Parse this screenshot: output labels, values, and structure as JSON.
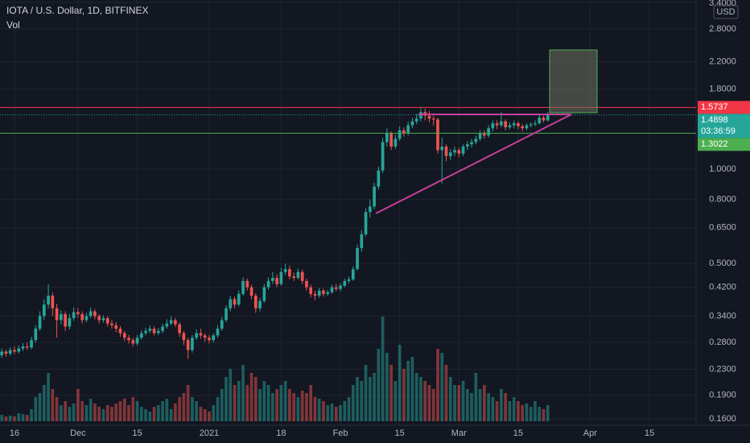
{
  "header": {
    "symbol": "IOTA / U.S. Dollar, 1D, BITFINEX",
    "indicator": "Vol"
  },
  "chart_data": {
    "type": "candlestick",
    "currency": "USD",
    "log_scale": true,
    "grid": true,
    "up_color": "#26a69a",
    "down_color": "#ef5350",
    "xlim": [
      -3.42,
      161.03
    ],
    "ylim": [
      0.1525,
      3.462
    ],
    "xticks": [
      {
        "value": 0,
        "label": "16"
      },
      {
        "value": 15,
        "label": "Dec"
      },
      {
        "value": 29,
        "label": "15"
      },
      {
        "value": 46,
        "label": "2021"
      },
      {
        "value": 63,
        "label": "18"
      },
      {
        "value": 77,
        "label": "Feb"
      },
      {
        "value": 91,
        "label": "15"
      },
      {
        "value": 105,
        "label": "Mar"
      },
      {
        "value": 119,
        "label": "15"
      },
      {
        "value": 136,
        "label": "Apr"
      },
      {
        "value": 150,
        "label": "15"
      }
    ],
    "yticks": [
      {
        "value": 3.4,
        "label": "3.4000"
      },
      {
        "value": 2.8,
        "label": "2.8000"
      },
      {
        "value": 2.2,
        "label": "2.2000"
      },
      {
        "value": 1.8,
        "label": "1.8000"
      },
      {
        "value": 1.0,
        "label": "1.0000"
      },
      {
        "value": 0.8,
        "label": "0.8000"
      },
      {
        "value": 0.65,
        "label": "0.6500"
      },
      {
        "value": 0.5,
        "label": "0.5000"
      },
      {
        "value": 0.42,
        "label": "0.4200"
      },
      {
        "value": 0.34,
        "label": "0.3400"
      },
      {
        "value": 0.28,
        "label": "0.2800"
      },
      {
        "value": 0.23,
        "label": "0.2300"
      },
      {
        "value": 0.19,
        "label": "0.1900"
      },
      {
        "value": 0.16,
        "label": "0.1600"
      }
    ],
    "price_lines": [
      {
        "value": 1.5737,
        "color": "#f23645"
      },
      {
        "value": 1.3022,
        "color": "#4caf50"
      }
    ],
    "last_price": 1.4898,
    "countdown": "03:36:59",
    "x": [
      -3,
      -2,
      -1,
      0,
      1,
      2,
      3,
      4,
      5,
      6,
      7,
      8,
      9,
      10,
      11,
      12,
      13,
      14,
      15,
      16,
      17,
      18,
      19,
      20,
      21,
      22,
      23,
      24,
      25,
      26,
      27,
      28,
      29,
      30,
      31,
      32,
      33,
      34,
      35,
      36,
      37,
      38,
      39,
      40,
      41,
      42,
      43,
      44,
      45,
      46,
      47,
      48,
      49,
      50,
      51,
      52,
      53,
      54,
      55,
      56,
      57,
      58,
      59,
      60,
      61,
      62,
      63,
      64,
      65,
      66,
      67,
      68,
      69,
      70,
      71,
      72,
      73,
      74,
      75,
      76,
      77,
      78,
      79,
      80,
      81,
      82,
      83,
      84,
      85,
      86,
      87,
      88,
      89,
      90,
      91,
      92,
      93,
      94,
      95,
      96,
      97,
      98,
      99,
      100,
      101,
      102,
      103,
      104,
      105,
      106,
      107,
      108,
      109,
      110,
      111,
      112,
      113,
      114,
      115,
      116,
      117,
      118,
      119,
      120,
      121,
      122,
      123,
      124,
      125,
      126
    ],
    "open": [
      0.255,
      0.262,
      0.258,
      0.265,
      0.262,
      0.268,
      0.272,
      0.27,
      0.285,
      0.31,
      0.34,
      0.37,
      0.395,
      0.36,
      0.33,
      0.345,
      0.315,
      0.335,
      0.35,
      0.345,
      0.33,
      0.34,
      0.352,
      0.34,
      0.33,
      0.335,
      0.322,
      0.318,
      0.31,
      0.3,
      0.29,
      0.285,
      0.278,
      0.29,
      0.3,
      0.305,
      0.31,
      0.3,
      0.305,
      0.315,
      0.322,
      0.33,
      0.32,
      0.3,
      0.285,
      0.265,
      0.29,
      0.3,
      0.295,
      0.29,
      0.285,
      0.295,
      0.31,
      0.33,
      0.36,
      0.385,
      0.37,
      0.4,
      0.44,
      0.42,
      0.395,
      0.36,
      0.38,
      0.42,
      0.44,
      0.45,
      0.43,
      0.47,
      0.48,
      0.455,
      0.45,
      0.47,
      0.44,
      0.42,
      0.4,
      0.395,
      0.41,
      0.4,
      0.405,
      0.42,
      0.415,
      0.425,
      0.44,
      0.445,
      0.48,
      0.56,
      0.62,
      0.73,
      0.76,
      0.88,
      0.99,
      1.22,
      1.3,
      1.18,
      1.25,
      1.33,
      1.3,
      1.38,
      1.42,
      1.45,
      1.52,
      1.48,
      1.45,
      1.44,
      1.15,
      1.18,
      1.1,
      1.13,
      1.15,
      1.12,
      1.18,
      1.2,
      1.22,
      1.25,
      1.3,
      1.28,
      1.35,
      1.4,
      1.38,
      1.42,
      1.36,
      1.38,
      1.4,
      1.37,
      1.35,
      1.38,
      1.39,
      1.4,
      1.46,
      1.43
    ],
    "high": [
      0.268,
      0.266,
      0.27,
      0.272,
      0.274,
      0.279,
      0.28,
      0.292,
      0.318,
      0.352,
      0.385,
      0.43,
      0.405,
      0.372,
      0.355,
      0.352,
      0.345,
      0.362,
      0.36,
      0.352,
      0.348,
      0.362,
      0.358,
      0.345,
      0.342,
      0.34,
      0.33,
      0.325,
      0.316,
      0.305,
      0.296,
      0.29,
      0.296,
      0.306,
      0.312,
      0.318,
      0.316,
      0.312,
      0.322,
      0.332,
      0.34,
      0.336,
      0.325,
      0.305,
      0.29,
      0.296,
      0.308,
      0.31,
      0.3,
      0.296,
      0.3,
      0.318,
      0.338,
      0.368,
      0.395,
      0.392,
      0.41,
      0.452,
      0.448,
      0.428,
      0.402,
      0.388,
      0.43,
      0.452,
      0.47,
      0.462,
      0.485,
      0.5,
      0.492,
      0.468,
      0.482,
      0.478,
      0.448,
      0.428,
      0.41,
      0.418,
      0.416,
      0.412,
      0.428,
      0.43,
      0.432,
      0.448,
      0.455,
      0.49,
      0.575,
      0.64,
      0.75,
      0.8,
      0.905,
      1.02,
      1.26,
      1.35,
      1.32,
      1.29,
      1.37,
      1.36,
      1.42,
      1.46,
      1.5,
      1.58,
      1.56,
      1.53,
      1.48,
      1.46,
      1.26,
      1.2,
      1.16,
      1.18,
      1.17,
      1.2,
      1.23,
      1.25,
      1.28,
      1.33,
      1.33,
      1.38,
      1.43,
      1.43,
      1.52,
      1.44,
      1.41,
      1.43,
      1.42,
      1.39,
      1.4,
      1.41,
      1.43,
      1.5,
      1.48,
      1.52
    ],
    "low": [
      0.25,
      0.252,
      0.254,
      0.257,
      0.258,
      0.263,
      0.265,
      0.266,
      0.28,
      0.305,
      0.33,
      0.36,
      0.34,
      0.29,
      0.32,
      0.305,
      0.308,
      0.328,
      0.335,
      0.322,
      0.325,
      0.335,
      0.332,
      0.322,
      0.324,
      0.315,
      0.31,
      0.302,
      0.292,
      0.283,
      0.278,
      0.272,
      0.274,
      0.286,
      0.295,
      0.3,
      0.295,
      0.296,
      0.3,
      0.31,
      0.318,
      0.314,
      0.292,
      0.275,
      0.248,
      0.26,
      0.285,
      0.288,
      0.282,
      0.278,
      0.28,
      0.29,
      0.305,
      0.325,
      0.352,
      0.36,
      0.365,
      0.395,
      0.41,
      0.385,
      0.348,
      0.352,
      0.375,
      0.412,
      0.43,
      0.42,
      0.425,
      0.46,
      0.445,
      0.44,
      0.445,
      0.43,
      0.41,
      0.39,
      0.382,
      0.388,
      0.392,
      0.394,
      0.4,
      0.408,
      0.408,
      0.42,
      0.432,
      0.44,
      0.475,
      0.545,
      0.61,
      0.7,
      0.745,
      0.86,
      0.97,
      1.18,
      1.15,
      1.16,
      1.23,
      1.27,
      1.28,
      1.35,
      1.39,
      1.42,
      1.43,
      1.41,
      1.38,
      1.12,
      0.9,
      1.06,
      1.07,
      1.1,
      1.09,
      1.1,
      1.15,
      1.17,
      1.2,
      1.23,
      1.25,
      1.26,
      1.32,
      1.34,
      1.36,
      1.33,
      1.34,
      1.35,
      1.34,
      1.32,
      1.33,
      1.36,
      1.37,
      1.39,
      1.41,
      1.42
    ],
    "close": [
      0.262,
      0.258,
      0.265,
      0.262,
      0.268,
      0.272,
      0.27,
      0.285,
      0.31,
      0.34,
      0.37,
      0.395,
      0.36,
      0.33,
      0.345,
      0.315,
      0.335,
      0.35,
      0.345,
      0.33,
      0.34,
      0.352,
      0.34,
      0.33,
      0.335,
      0.322,
      0.318,
      0.31,
      0.3,
      0.29,
      0.285,
      0.278,
      0.29,
      0.3,
      0.305,
      0.31,
      0.3,
      0.305,
      0.315,
      0.322,
      0.33,
      0.32,
      0.3,
      0.285,
      0.265,
      0.29,
      0.3,
      0.295,
      0.29,
      0.285,
      0.295,
      0.31,
      0.33,
      0.36,
      0.385,
      0.37,
      0.4,
      0.44,
      0.42,
      0.395,
      0.36,
      0.38,
      0.42,
      0.44,
      0.45,
      0.43,
      0.47,
      0.48,
      0.455,
      0.45,
      0.47,
      0.44,
      0.42,
      0.4,
      0.395,
      0.41,
      0.4,
      0.405,
      0.42,
      0.415,
      0.425,
      0.44,
      0.445,
      0.48,
      0.56,
      0.62,
      0.73,
      0.76,
      0.88,
      0.99,
      1.22,
      1.3,
      1.18,
      1.25,
      1.33,
      1.3,
      1.38,
      1.42,
      1.45,
      1.52,
      1.48,
      1.45,
      1.44,
      1.15,
      1.18,
      1.1,
      1.13,
      1.15,
      1.12,
      1.18,
      1.2,
      1.22,
      1.25,
      1.3,
      1.28,
      1.35,
      1.4,
      1.38,
      1.42,
      1.36,
      1.38,
      1.4,
      1.37,
      1.35,
      1.38,
      1.39,
      1.4,
      1.46,
      1.43,
      1.4898
    ],
    "volume": [
      8,
      6,
      7,
      6,
      10,
      9,
      8,
      15,
      30,
      35,
      45,
      60,
      40,
      30,
      20,
      25,
      18,
      22,
      40,
      25,
      20,
      28,
      22,
      18,
      15,
      20,
      18,
      22,
      25,
      28,
      20,
      30,
      25,
      18,
      15,
      12,
      18,
      20,
      25,
      28,
      15,
      22,
      30,
      35,
      45,
      30,
      25,
      18,
      15,
      12,
      20,
      30,
      40,
      55,
      65,
      45,
      50,
      70,
      45,
      60,
      55,
      40,
      50,
      45,
      35,
      40,
      45,
      50,
      40,
      35,
      30,
      38,
      35,
      45,
      30,
      28,
      25,
      20,
      22,
      18,
      20,
      25,
      30,
      45,
      55,
      50,
      70,
      55,
      60,
      90,
      130,
      85,
      70,
      50,
      95,
      65,
      75,
      80,
      60,
      55,
      50,
      45,
      40,
      90,
      85,
      70,
      55,
      45,
      45,
      50,
      40,
      35,
      60,
      40,
      45,
      35,
      30,
      25,
      40,
      35,
      25,
      30,
      25,
      20,
      22,
      18,
      25,
      18,
      15,
      20
    ]
  }
}
